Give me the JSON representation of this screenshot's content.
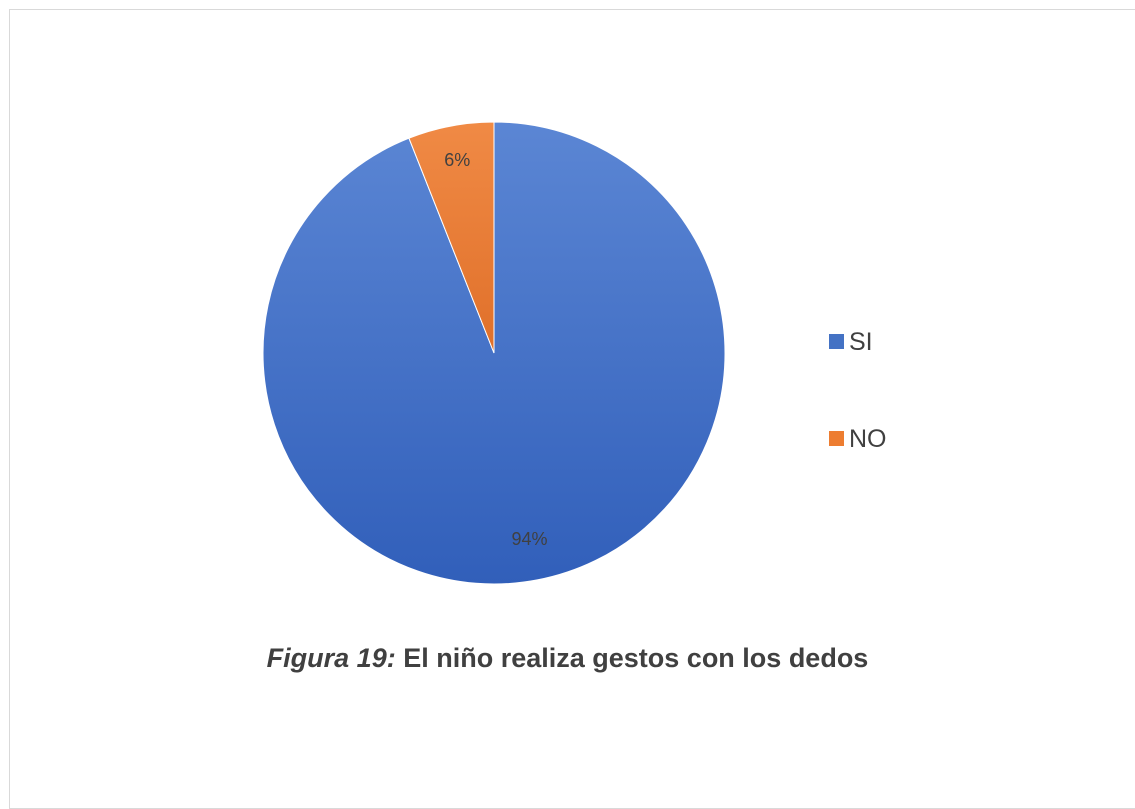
{
  "chart_data": {
    "type": "pie",
    "categories": [
      "SI",
      "NO"
    ],
    "values": [
      94,
      6
    ],
    "data_labels": [
      "94%",
      "6%"
    ],
    "colors": [
      "#4472C4",
      "#ED7D31"
    ],
    "legend": {
      "placement": "right",
      "entries": [
        "SI",
        "NO"
      ]
    }
  },
  "caption": {
    "lead": "Figura 19:",
    "text": "El niño realiza gestos con los dedos"
  }
}
